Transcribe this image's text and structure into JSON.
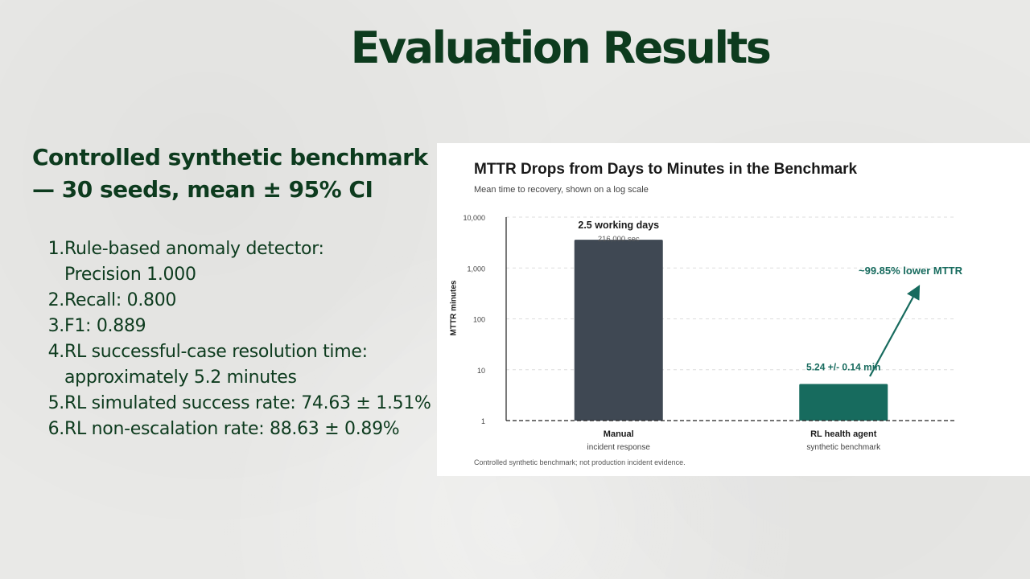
{
  "slide": {
    "title": "Evaluation Results",
    "heading_lines": [
      "Controlled synthetic benchmark",
      "— 30 seeds, mean ± 95% CI"
    ],
    "findings": [
      {
        "num": "1.",
        "text": "Rule-based anomaly detector:\nPrecision 1.000"
      },
      {
        "num": "2.",
        "text": "Recall: 0.800"
      },
      {
        "num": "3.",
        "text": "F1: 0.889"
      },
      {
        "num": "4.",
        "text": "RL successful-case resolution time:\napproximately 5.2 minutes"
      },
      {
        "num": "5.",
        "text": "RL simulated success rate: 74.63 ± 1.51%"
      },
      {
        "num": "6.",
        "text": "RL non-escalation rate: 88.63 ± 0.89%"
      }
    ]
  },
  "chart_data": {
    "type": "bar",
    "title": "MTTR Drops from Days to Minutes in the Benchmark",
    "subtitle": "Mean time to recovery, shown on a log scale",
    "ylabel": "MTTR minutes",
    "yscale": "log",
    "ylim": [
      1,
      10000
    ],
    "yticks": [
      1,
      10,
      100,
      1000,
      10000
    ],
    "ytick_labels": [
      "1",
      "10",
      "100",
      "1,000",
      "10,000"
    ],
    "grid": true,
    "categories": [
      {
        "label": "Manual",
        "sublabel": "incident response"
      },
      {
        "label": "RL health agent",
        "sublabel": "synthetic benchmark"
      }
    ],
    "values": [
      3600,
      5.24
    ],
    "bar_colors": [
      "#3f4853",
      "#176b5e"
    ],
    "data_labels": [
      {
        "main": "2.5 working days",
        "secondary": "216,000 sec"
      },
      {
        "main": "5.24 +/- 0.14 min",
        "secondary": ""
      }
    ],
    "annotation": {
      "text": "~99.85% lower MTTR",
      "color": "#176b5e"
    },
    "footnote": "Controlled synthetic benchmark; not production incident evidence."
  }
}
